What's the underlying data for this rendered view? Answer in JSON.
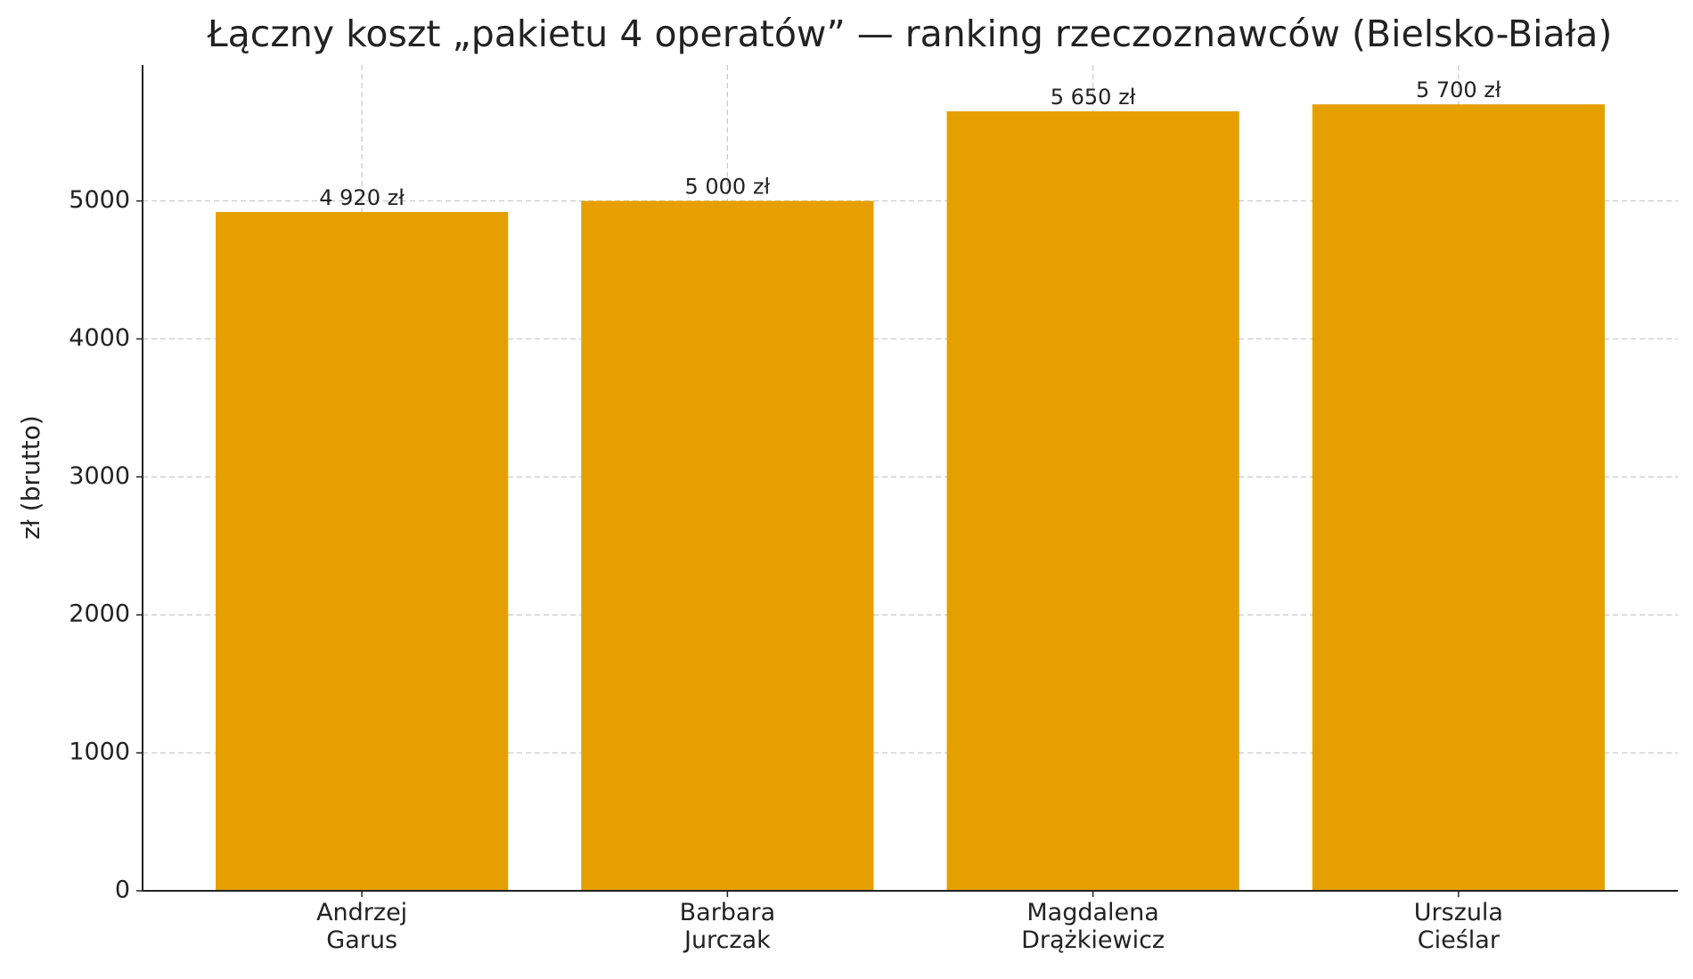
{
  "chart_data": {
    "type": "bar",
    "title": "Łączny koszt „pakietu 4 operatów” — ranking rzeczoznawców (Bielsko-Biała)",
    "y_label": "zł (brutto)",
    "categories": [
      "Andrzej\nGarus",
      "Barbara\nJurczak",
      "Magdalena\nDrążkiewicz",
      "Urszula\nCieślar"
    ],
    "values": [
      4920,
      5000,
      5650,
      5700
    ],
    "value_labels": [
      "4 920 zł",
      "5 000 zł",
      "5 650 zł",
      "5 700 zł"
    ],
    "color": "#e5a000",
    "ylim": [
      0,
      5985
    ],
    "yticks": [
      0,
      1000,
      2000,
      3000,
      4000,
      5000
    ],
    "grid": true
  }
}
